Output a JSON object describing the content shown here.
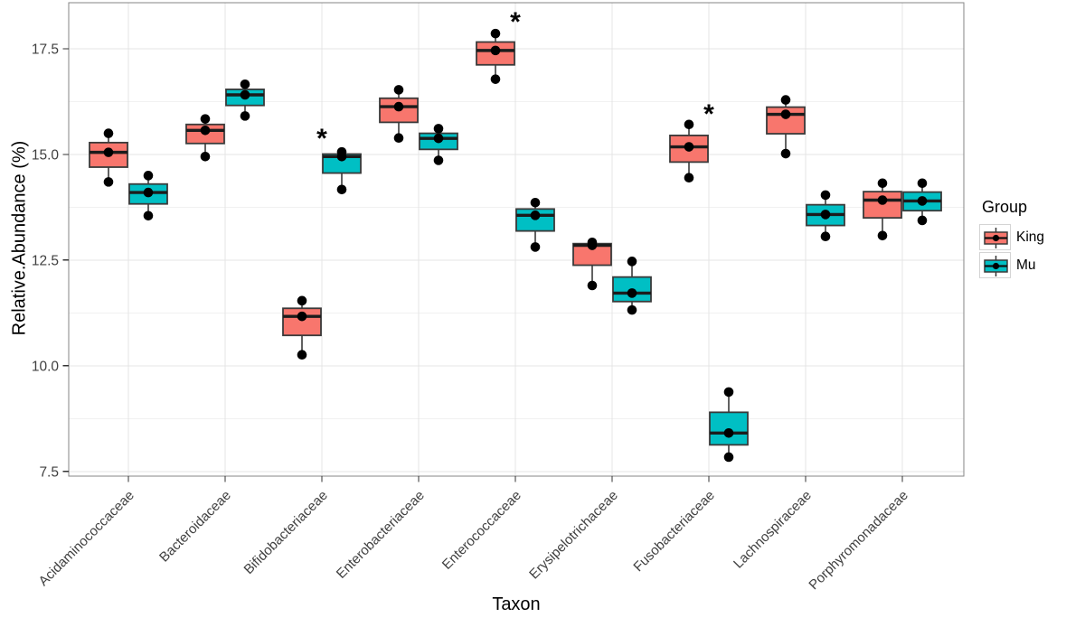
{
  "axes": {
    "x_title": "Taxon",
    "y_title": "Relative.Abundance (%)",
    "y_tick_labels": [
      "7.5",
      "10.0",
      "12.5",
      "15.0",
      "17.5"
    ]
  },
  "legend": {
    "title": "Group",
    "entries": [
      {
        "label": "King",
        "color": "#F8766D"
      },
      {
        "label": "Mu",
        "color": "#00BFC4"
      }
    ]
  },
  "style": {
    "king_fill": "#F8766D",
    "mu_fill": "#00BFC4",
    "box_border": "#3a3a3a",
    "median_line": "#1c1c1c",
    "point_color": "#000000",
    "grid_major": "#e4e4e4",
    "grid_minor": "#f1f1f1",
    "panel_border": "#858585",
    "tick_color": "#333333",
    "tick_label_color": "#404040",
    "annotation_color": "#000000"
  },
  "chart_data": {
    "type": "boxplot",
    "title": "",
    "xlabel": "Taxon",
    "ylabel": "Relative.Abundance (%)",
    "grid": true,
    "legend_position": "right",
    "legend_title": "Group",
    "ylim": [
      7.39,
      18.59
    ],
    "yticks": [
      7.5,
      10.0,
      12.5,
      15.0,
      17.5
    ],
    "minor_yticks": [
      8.75,
      11.25,
      13.75,
      16.25
    ],
    "categories": [
      "Acidaminococcaceae",
      "Bacteroidaceae",
      "Bifidobacteriaceae",
      "Enterobacteriaceae",
      "Enterococcaceae",
      "Erysipelotrichaceae",
      "Fusobacteriaceae",
      "Lachnospiraceae",
      "Porphyromonadaceae"
    ],
    "series": [
      {
        "name": "King",
        "color": "#F8766D",
        "boxes": [
          {
            "category": "Acidaminococcaceae",
            "points": [
              14.35,
              15.05,
              15.5
            ],
            "whisker_low": 14.35,
            "q1": 14.7,
            "median": 15.05,
            "q3": 15.28,
            "whisker_high": 15.5
          },
          {
            "category": "Bacteroidaceae",
            "points": [
              14.95,
              15.57,
              15.84
            ],
            "whisker_low": 14.95,
            "q1": 15.26,
            "median": 15.57,
            "q3": 15.71,
            "whisker_high": 15.84
          },
          {
            "category": "Bifidobacteriaceae",
            "points": [
              10.26,
              11.17,
              11.54
            ],
            "whisker_low": 10.26,
            "q1": 10.72,
            "median": 11.17,
            "q3": 11.36,
            "whisker_high": 11.54
          },
          {
            "category": "Enterobacteriaceae",
            "points": [
              15.39,
              16.13,
              16.53
            ],
            "whisker_low": 15.39,
            "q1": 15.76,
            "median": 16.13,
            "q3": 16.33,
            "whisker_high": 16.53
          },
          {
            "category": "Enterococcaceae",
            "points": [
              16.78,
              17.46,
              17.86
            ],
            "whisker_low": 16.78,
            "q1": 17.12,
            "median": 17.46,
            "q3": 17.66,
            "whisker_high": 17.86
          },
          {
            "category": "Erysipelotrichaceae",
            "points": [
              11.9,
              12.85,
              12.92
            ],
            "whisker_low": 11.9,
            "q1": 12.38,
            "median": 12.85,
            "q3": 12.89,
            "whisker_high": 12.92
          },
          {
            "category": "Fusobacteriaceae",
            "points": [
              14.45,
              15.18,
              15.71
            ],
            "whisker_low": 14.45,
            "q1": 14.82,
            "median": 15.18,
            "q3": 15.45,
            "whisker_high": 15.71
          },
          {
            "category": "Lachnospiraceae",
            "points": [
              15.02,
              15.95,
              16.29
            ],
            "whisker_low": 15.02,
            "q1": 15.49,
            "median": 15.95,
            "q3": 16.12,
            "whisker_high": 16.29
          },
          {
            "category": "Porphyromonadaceae",
            "points": [
              13.08,
              13.92,
              14.32
            ],
            "whisker_low": 13.08,
            "q1": 13.5,
            "median": 13.92,
            "q3": 14.12,
            "whisker_high": 14.32
          }
        ]
      },
      {
        "name": "Mu",
        "color": "#00BFC4",
        "boxes": [
          {
            "category": "Acidaminococcaceae",
            "points": [
              13.55,
              14.1,
              14.5
            ],
            "whisker_low": 13.55,
            "q1": 13.83,
            "median": 14.1,
            "q3": 14.3,
            "whisker_high": 14.5
          },
          {
            "category": "Bacteroidaceae",
            "points": [
              15.91,
              16.41,
              16.66
            ],
            "whisker_low": 15.91,
            "q1": 16.16,
            "median": 16.41,
            "q3": 16.54,
            "whisker_high": 16.66
          },
          {
            "category": "Bifidobacteriaceae",
            "points": [
              14.17,
              14.95,
              15.06
            ],
            "whisker_low": 14.17,
            "q1": 14.56,
            "median": 14.95,
            "q3": 15.01,
            "whisker_high": 15.06
          },
          {
            "category": "Enterobacteriaceae",
            "points": [
              14.86,
              15.38,
              15.61
            ],
            "whisker_low": 14.86,
            "q1": 15.12,
            "median": 15.38,
            "q3": 15.5,
            "whisker_high": 15.61
          },
          {
            "category": "Enterococcaceae",
            "points": [
              12.81,
              13.56,
              13.86
            ],
            "whisker_low": 12.81,
            "q1": 13.19,
            "median": 13.56,
            "q3": 13.71,
            "whisker_high": 13.86
          },
          {
            "category": "Erysipelotrichaceae",
            "points": [
              11.32,
              11.72,
              12.47
            ],
            "whisker_low": 11.32,
            "q1": 11.52,
            "median": 11.72,
            "q3": 12.1,
            "whisker_high": 12.47
          },
          {
            "category": "Fusobacteriaceae",
            "points": [
              7.84,
              8.41,
              9.38
            ],
            "whisker_low": 7.84,
            "q1": 8.13,
            "median": 8.41,
            "q3": 8.9,
            "whisker_high": 9.38
          },
          {
            "category": "Lachnospiraceae",
            "points": [
              13.06,
              13.58,
              14.04
            ],
            "whisker_low": 13.06,
            "q1": 13.32,
            "median": 13.58,
            "q3": 13.81,
            "whisker_high": 14.04
          },
          {
            "category": "Porphyromonadaceae",
            "points": [
              13.44,
              13.9,
              14.32
            ],
            "whisker_low": 13.44,
            "q1": 13.67,
            "median": 13.9,
            "q3": 14.11,
            "whisker_high": 14.32
          }
        ]
      }
    ],
    "annotations": [
      {
        "symbol": "*",
        "category": "Bifidobacteriaceae",
        "y": 15.45
      },
      {
        "symbol": "*",
        "category": "Enterococcaceae",
        "y": 18.2
      },
      {
        "symbol": "*",
        "category": "Fusobacteriaceae",
        "y": 16.03
      }
    ]
  }
}
